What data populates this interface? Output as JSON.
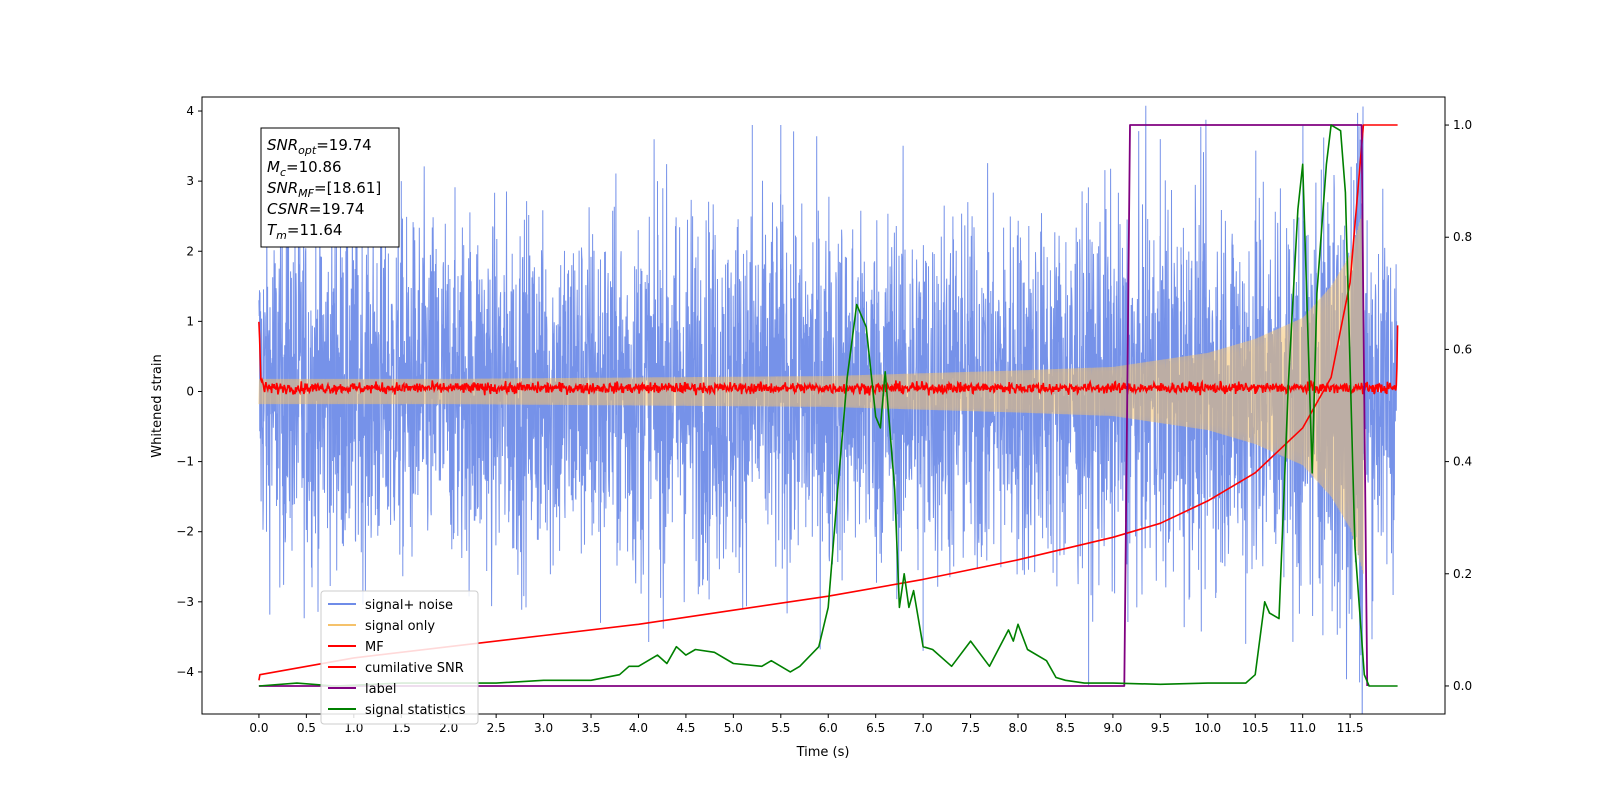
{
  "chart_data": {
    "type": "line",
    "title": "",
    "xlabel": "Time (s)",
    "ylabel": "Whitened strain",
    "xlim": [
      -0.6,
      12.5
    ],
    "ylim": [
      -4.6,
      4.2
    ],
    "y2lim": [
      -0.05,
      1.05
    ],
    "grid": false,
    "legend_position": "lower-left",
    "x_ticks": [
      "0.0",
      "0.5",
      "1.0",
      "1.5",
      "2.0",
      "2.5",
      "3.0",
      "3.5",
      "4.0",
      "4.5",
      "5.0",
      "5.5",
      "6.0",
      "6.5",
      "7.0",
      "7.5",
      "8.0",
      "8.5",
      "9.0",
      "9.5",
      "10.0",
      "10.5",
      "11.0",
      "11.5"
    ],
    "y_ticks": [
      "−4",
      "−3",
      "−2",
      "−1",
      "0",
      "1",
      "2",
      "3",
      "4"
    ],
    "y2_ticks": [
      "0.0",
      "0.2",
      "0.4",
      "0.6",
      "0.8",
      "1.0"
    ],
    "annotation": {
      "snr_opt": {
        "name": "SNR",
        "sub": "opt",
        "value": "=19.74"
      },
      "mc": {
        "name": "M",
        "sub": "c",
        "value": "=10.86"
      },
      "snr_mf": {
        "name": "SNR",
        "sub": "MF",
        "value": "=[18.61]"
      },
      "csnr": {
        "name": "CSNR",
        "value": "=19.74"
      },
      "tm": {
        "name": "T",
        "sub": "m",
        "value": "=11.64"
      }
    },
    "series": [
      {
        "name": "signal+ noise",
        "color": "#6f8ce8",
        "axis": "left",
        "noise_envelope_x": [
          0.0,
          1.0,
          2.0,
          3.0,
          4.0,
          5.0,
          6.0,
          7.0,
          8.0,
          9.0,
          10.0,
          11.0,
          11.64,
          11.99
        ],
        "noise_envelope_y": [
          2.6,
          2.5,
          2.5,
          2.5,
          2.6,
          2.6,
          2.6,
          2.6,
          2.6,
          2.6,
          2.6,
          2.6,
          2.6,
          2.6
        ],
        "extremes": [
          [
            0.3,
            3.3
          ],
          [
            1.5,
            3.0
          ],
          [
            3.6,
            -3.3
          ],
          [
            4.2,
            3.0
          ],
          [
            5.2,
            3.8
          ],
          [
            5.5,
            3.8
          ],
          [
            7.0,
            -3.7
          ],
          [
            9.5,
            3.6
          ],
          [
            10.4,
            -3.6
          ],
          [
            11.6,
            -4.15
          ]
        ]
      },
      {
        "name": "signal only",
        "color": "#f5c26b",
        "axis": "left",
        "x": [
          0.0,
          2.0,
          4.0,
          6.0,
          8.0,
          9.0,
          9.5,
          10.0,
          10.5,
          11.0,
          11.3,
          11.5,
          11.64
        ],
        "amplitude": [
          0.18,
          0.18,
          0.2,
          0.22,
          0.3,
          0.35,
          0.45,
          0.55,
          0.75,
          1.05,
          1.5,
          1.95,
          2.6
        ]
      },
      {
        "name": "MF",
        "color": "#ff0000",
        "axis": "left",
        "x": [
          0.0,
          0.02,
          0.05,
          11.99,
          12.0
        ],
        "y": [
          1.0,
          0.2,
          0.05,
          0.05,
          0.9
        ],
        "noise_sigma": 0.04
      },
      {
        "name": "cumilative SNR",
        "color": "#ff0000",
        "axis": "right",
        "x": [
          0.0,
          0.01,
          1.0,
          2.0,
          3.0,
          4.0,
          5.0,
          6.0,
          7.0,
          8.0,
          9.0,
          9.5,
          10.0,
          10.5,
          11.0,
          11.3,
          11.5,
          11.64,
          12.0
        ],
        "y": [
          0.01,
          0.02,
          0.05,
          0.07,
          0.09,
          0.11,
          0.135,
          0.16,
          0.19,
          0.225,
          0.265,
          0.29,
          0.33,
          0.38,
          0.46,
          0.55,
          0.72,
          1.0,
          1.0
        ]
      },
      {
        "name": "label",
        "color": "#800080",
        "axis": "right",
        "x": [
          0.0,
          9.12,
          9.18,
          11.62,
          11.68
        ],
        "y": [
          0.0,
          0.0,
          1.0,
          1.0,
          0.0
        ]
      },
      {
        "name": "signal statistics",
        "color": "#008000",
        "axis": "right",
        "x": [
          0.0,
          0.4,
          0.8,
          1.5,
          2.5,
          3.0,
          3.5,
          3.8,
          3.9,
          4.0,
          4.2,
          4.3,
          4.4,
          4.5,
          4.6,
          4.8,
          5.0,
          5.3,
          5.4,
          5.6,
          5.7,
          5.9,
          6.0,
          6.1,
          6.2,
          6.3,
          6.4,
          6.5,
          6.55,
          6.6,
          6.7,
          6.75,
          6.8,
          6.85,
          6.9,
          7.0,
          7.1,
          7.3,
          7.5,
          7.7,
          7.9,
          7.95,
          8.0,
          8.1,
          8.3,
          8.4,
          8.5,
          8.7,
          9.0,
          9.5,
          10.0,
          10.4,
          10.5,
          10.6,
          10.65,
          10.75,
          10.85,
          10.95,
          11.0,
          11.1,
          11.15,
          11.25,
          11.3,
          11.4,
          11.45,
          11.55,
          11.65,
          11.7,
          12.0
        ],
        "y": [
          0.0,
          0.005,
          0.0,
          0.005,
          0.005,
          0.01,
          0.01,
          0.02,
          0.035,
          0.035,
          0.055,
          0.04,
          0.07,
          0.055,
          0.065,
          0.06,
          0.04,
          0.035,
          0.045,
          0.025,
          0.035,
          0.07,
          0.14,
          0.35,
          0.55,
          0.68,
          0.64,
          0.48,
          0.46,
          0.56,
          0.35,
          0.14,
          0.2,
          0.14,
          0.17,
          0.07,
          0.065,
          0.035,
          0.08,
          0.035,
          0.1,
          0.08,
          0.11,
          0.065,
          0.045,
          0.015,
          0.01,
          0.005,
          0.005,
          0.003,
          0.005,
          0.005,
          0.02,
          0.15,
          0.13,
          0.12,
          0.54,
          0.85,
          0.93,
          0.38,
          0.7,
          0.93,
          1.0,
          0.99,
          0.88,
          0.25,
          0.02,
          0.0,
          0.0
        ]
      }
    ]
  }
}
